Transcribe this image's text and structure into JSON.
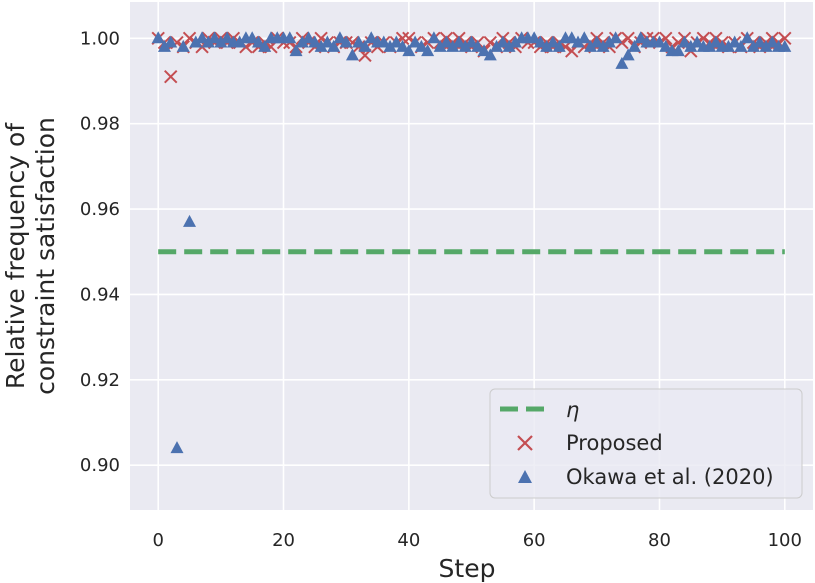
{
  "chart_data": {
    "type": "scatter",
    "xlabel": "Step",
    "ylabel_lines": [
      "Relative frequency of",
      "constraint satisfaction"
    ],
    "xlim": [
      -4.5,
      104.5
    ],
    "ylim": [
      0.8895,
      1.0085
    ],
    "xticks": [
      0,
      20,
      40,
      60,
      80,
      100
    ],
    "yticks": [
      0.9,
      0.92,
      0.94,
      0.96,
      0.98,
      1.0
    ],
    "xtick_labels": [
      "0",
      "20",
      "40",
      "60",
      "80",
      "100"
    ],
    "ytick_labels": [
      "0.90",
      "0.92",
      "0.94",
      "0.96",
      "0.98",
      "1.00"
    ],
    "grid": true,
    "legend_position": "lower-right",
    "threshold": {
      "name": "η",
      "value": 0.95,
      "x_range": [
        0,
        100
      ],
      "color": "#55a868",
      "style": "dashed"
    },
    "series": [
      {
        "name": "Proposed",
        "marker": "x",
        "color": "#c44e52",
        "x": [
          0,
          1,
          2,
          3,
          4,
          5,
          6,
          7,
          8,
          9,
          10,
          11,
          12,
          13,
          14,
          15,
          16,
          17,
          18,
          19,
          20,
          21,
          22,
          23,
          24,
          25,
          26,
          27,
          28,
          29,
          30,
          31,
          32,
          33,
          34,
          35,
          36,
          37,
          38,
          39,
          40,
          41,
          42,
          43,
          44,
          45,
          46,
          47,
          48,
          49,
          50,
          51,
          52,
          53,
          54,
          55,
          56,
          57,
          58,
          59,
          60,
          61,
          62,
          63,
          64,
          65,
          66,
          67,
          68,
          69,
          70,
          71,
          72,
          73,
          74,
          75,
          76,
          77,
          78,
          79,
          80,
          81,
          82,
          83,
          84,
          85,
          86,
          87,
          88,
          89,
          90,
          91,
          92,
          93,
          94,
          95,
          96,
          97,
          98,
          99,
          100
        ],
        "y": [
          1.0,
          0.999,
          0.991,
          0.999,
          0.998,
          1.0,
          0.999,
          0.998,
          1.0,
          0.999,
          1.0,
          0.999,
          1.0,
          0.999,
          0.998,
          0.999,
          0.998,
          0.999,
          0.998,
          1.0,
          0.999,
          0.999,
          0.998,
          1.0,
          0.999,
          0.998,
          1.0,
          0.999,
          0.998,
          0.999,
          0.999,
          0.999,
          0.998,
          0.996,
          0.999,
          0.998,
          0.999,
          0.998,
          0.999,
          1.0,
          1.0,
          0.999,
          0.998,
          0.999,
          1.0,
          0.999,
          1.0,
          0.999,
          1.0,
          0.999,
          0.998,
          0.999,
          0.997,
          0.999,
          0.998,
          1.0,
          0.999,
          0.998,
          1.0,
          0.999,
          0.999,
          0.998,
          0.999,
          0.998,
          0.999,
          0.998,
          0.997,
          0.999,
          0.998,
          0.999,
          1.0,
          0.999,
          0.998,
          1.0,
          0.999,
          1.0,
          0.998,
          0.999,
          1.0,
          1.0,
          0.999,
          1.0,
          0.998,
          0.999,
          1.0,
          0.997,
          0.999,
          1.0,
          0.999,
          1.0,
          0.999,
          0.998,
          0.999,
          0.998,
          1.0,
          0.999,
          0.998,
          0.999,
          1.0,
          0.999,
          1.0
        ]
      },
      {
        "name": "Okawa et al. (2020)",
        "marker": "triangle",
        "color": "#4c72b0",
        "x": [
          0,
          1,
          2,
          3,
          4,
          5,
          6,
          7,
          8,
          9,
          10,
          11,
          12,
          13,
          14,
          15,
          16,
          17,
          18,
          19,
          20,
          21,
          22,
          23,
          24,
          25,
          26,
          27,
          28,
          29,
          30,
          31,
          32,
          33,
          34,
          35,
          36,
          37,
          38,
          39,
          40,
          41,
          42,
          43,
          44,
          45,
          46,
          47,
          48,
          49,
          50,
          51,
          52,
          53,
          54,
          55,
          56,
          57,
          58,
          59,
          60,
          61,
          62,
          63,
          64,
          65,
          66,
          67,
          68,
          69,
          70,
          71,
          72,
          73,
          74,
          75,
          76,
          77,
          78,
          79,
          80,
          81,
          82,
          83,
          84,
          85,
          86,
          87,
          88,
          89,
          90,
          91,
          92,
          93,
          94,
          95,
          96,
          97,
          98,
          99,
          100
        ],
        "y": [
          1.0,
          0.998,
          0.999,
          0.904,
          0.998,
          0.957,
          0.999,
          1.0,
          0.999,
          1.0,
          0.999,
          1.0,
          0.999,
          0.999,
          1.0,
          1.0,
          0.999,
          0.998,
          1.0,
          1.0,
          1.0,
          1.0,
          0.997,
          0.999,
          1.0,
          0.999,
          0.998,
          0.999,
          0.998,
          1.0,
          0.999,
          0.996,
          0.999,
          0.998,
          1.0,
          0.999,
          0.999,
          0.998,
          0.999,
          0.998,
          0.997,
          0.999,
          0.998,
          0.997,
          1.0,
          0.998,
          0.999,
          0.998,
          0.999,
          0.998,
          0.999,
          0.998,
          0.997,
          0.996,
          0.998,
          0.999,
          0.998,
          0.999,
          1.0,
          1.0,
          1.0,
          0.999,
          0.998,
          0.999,
          0.998,
          1.0,
          1.0,
          0.999,
          1.0,
          0.998,
          0.999,
          0.998,
          0.999,
          1.0,
          0.994,
          0.996,
          0.998,
          1.0,
          0.999,
          0.999,
          0.999,
          0.998,
          0.997,
          0.997,
          0.999,
          0.998,
          0.999,
          0.998,
          0.998,
          0.999,
          0.998,
          0.998,
          0.999,
          0.998,
          1.0,
          0.998,
          0.999,
          0.998,
          0.999,
          0.998,
          0.998
        ]
      }
    ]
  }
}
